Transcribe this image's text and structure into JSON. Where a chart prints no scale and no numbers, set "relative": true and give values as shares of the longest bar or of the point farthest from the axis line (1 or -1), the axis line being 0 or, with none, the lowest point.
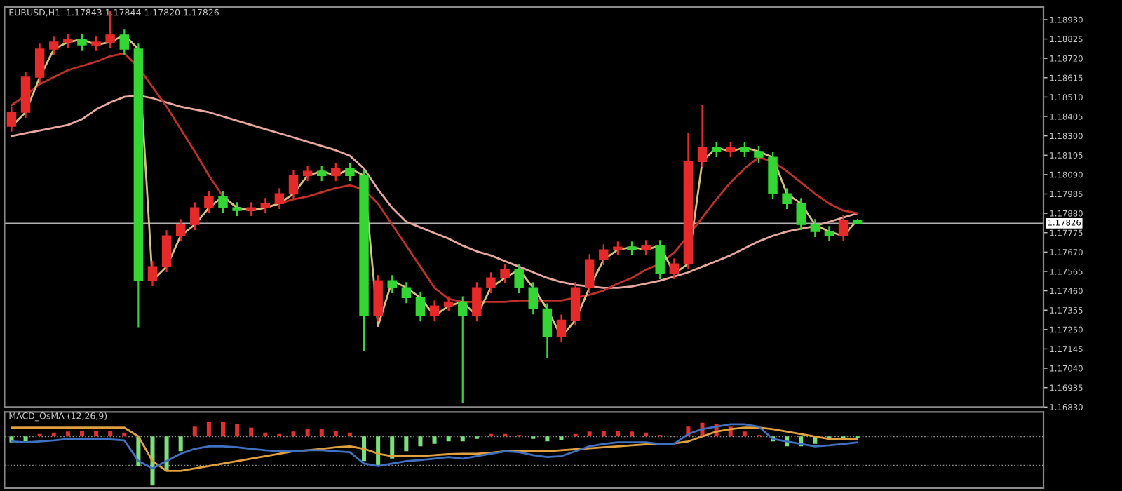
{
  "chart_data": [
    {
      "type": "candlestick",
      "title": "EURUSD,H1  1.17843 1.17844 1.17820 1.17826",
      "tick_labels": "y",
      "grid": false,
      "categories": [
        null,
        null,
        null,
        null,
        null,
        null,
        null,
        null,
        null,
        null,
        null,
        null,
        null,
        null,
        null,
        null,
        null,
        null,
        null,
        null,
        null,
        null,
        null,
        null,
        null,
        null,
        null,
        null,
        null,
        null,
        null,
        null,
        null,
        null,
        null,
        null,
        null,
        null,
        null,
        null,
        null,
        null,
        null,
        null,
        null,
        null,
        null,
        null,
        null,
        null,
        null,
        null,
        null,
        null,
        null,
        null,
        null,
        null,
        null,
        null,
        null
      ],
      "ohlc": [
        [
          1.18352,
          1.18458,
          1.18322,
          1.18428
        ],
        [
          1.18428,
          1.18648,
          1.18398,
          1.18618
        ],
        [
          1.18618,
          1.188,
          1.18588,
          1.1877
        ],
        [
          1.1877,
          1.18838,
          1.1874,
          1.18808
        ],
        [
          1.18808,
          1.18853,
          1.18778,
          1.18823
        ],
        [
          1.18823,
          1.18853,
          1.18763,
          1.18793
        ],
        [
          1.18793,
          1.18838,
          1.18763,
          1.18808
        ],
        [
          1.18808,
          1.18975,
          1.18778,
          1.18846
        ],
        [
          1.18846,
          1.18876,
          1.1874,
          1.1877
        ],
        [
          1.1877,
          1.188,
          1.17263,
          1.17515
        ],
        [
          1.17515,
          1.17621,
          1.17485,
          1.17591
        ],
        [
          1.17591,
          1.17788,
          1.17561,
          1.17758
        ],
        [
          1.17758,
          1.17849,
          1.17728,
          1.17819
        ],
        [
          1.17819,
          1.1794,
          1.17789,
          1.1791
        ],
        [
          1.1791,
          1.18001,
          1.1788,
          1.17971
        ],
        [
          1.17971,
          1.18001,
          1.1788,
          1.1791
        ],
        [
          1.1791,
          1.1794,
          1.17865,
          1.17895
        ],
        [
          1.17895,
          1.1794,
          1.17865,
          1.1791
        ],
        [
          1.1791,
          1.17963,
          1.1788,
          1.17933
        ],
        [
          1.17933,
          1.18016,
          1.17903,
          1.17986
        ],
        [
          1.17986,
          1.18115,
          1.17956,
          1.18085
        ],
        [
          1.18085,
          1.18138,
          1.18055,
          1.18108
        ],
        [
          1.18108,
          1.18138,
          1.18055,
          1.18085
        ],
        [
          1.18085,
          1.18153,
          1.18055,
          1.18123
        ],
        [
          1.18123,
          1.18153,
          1.18055,
          1.18085
        ],
        [
          1.18085,
          1.18115,
          1.17134,
          1.17324
        ],
        [
          1.17324,
          1.17545,
          1.17294,
          1.17515
        ],
        [
          1.17515,
          1.17545,
          1.17447,
          1.17477
        ],
        [
          1.17477,
          1.17507,
          1.17393,
          1.17423
        ],
        [
          1.17423,
          1.17453,
          1.17294,
          1.17324
        ],
        [
          1.17324,
          1.17408,
          1.17294,
          1.17378
        ],
        [
          1.17378,
          1.1743,
          1.17348,
          1.174
        ],
        [
          1.174,
          1.1743,
          1.16853,
          1.17324
        ],
        [
          1.17324,
          1.17507,
          1.17294,
          1.17477
        ],
        [
          1.17477,
          1.1756,
          1.17447,
          1.1753
        ],
        [
          1.1753,
          1.17605,
          1.175,
          1.17575
        ],
        [
          1.17575,
          1.17605,
          1.17447,
          1.17477
        ],
        [
          1.17477,
          1.17507,
          1.17332,
          1.17362
        ],
        [
          1.17362,
          1.17392,
          1.17096,
          1.1721
        ],
        [
          1.1721,
          1.17331,
          1.1718,
          1.17301
        ],
        [
          1.17301,
          1.17507,
          1.17271,
          1.17477
        ],
        [
          1.17477,
          1.17659,
          1.17447,
          1.17629
        ],
        [
          1.17629,
          1.17712,
          1.17599,
          1.17682
        ],
        [
          1.17682,
          1.17727,
          1.17652,
          1.17697
        ],
        [
          1.17697,
          1.17727,
          1.17652,
          1.17682
        ],
        [
          1.17682,
          1.17735,
          1.17652,
          1.17705
        ],
        [
          1.17705,
          1.17735,
          1.17523,
          1.17553
        ],
        [
          1.17553,
          1.17636,
          1.17523,
          1.17606
        ],
        [
          1.17606,
          1.18314,
          1.17576,
          1.18161
        ],
        [
          1.18161,
          1.18466,
          1.18131,
          1.18237
        ],
        [
          1.18237,
          1.18267,
          1.18185,
          1.18215
        ],
        [
          1.18215,
          1.18267,
          1.18185,
          1.18237
        ],
        [
          1.18237,
          1.18267,
          1.18185,
          1.18215
        ],
        [
          1.18215,
          1.18245,
          1.18154,
          1.18184
        ],
        [
          1.18184,
          1.18214,
          1.17956,
          1.17986
        ],
        [
          1.17986,
          1.18016,
          1.17903,
          1.17933
        ],
        [
          1.17933,
          1.17963,
          1.17789,
          1.17819
        ],
        [
          1.17819,
          1.17849,
          1.17751,
          1.17781
        ],
        [
          1.17781,
          1.17811,
          1.17728,
          1.17758
        ],
        [
          1.17758,
          1.17873,
          1.17728,
          1.17843
        ],
        [
          1.17843,
          1.17844,
          1.1782,
          1.17826
        ]
      ],
      "colors": [
        "#e62a2a",
        "#e62a2a",
        "#e62a2a",
        "#e62a2a",
        "#e62a2a",
        "#33d633",
        "#e62a2a",
        "#e62a2a",
        "#33d633",
        "#33d633",
        "#e62a2a",
        "#e62a2a",
        "#e62a2a",
        "#e62a2a",
        "#e62a2a",
        "#33d633",
        "#33d633",
        "#e62a2a",
        "#e62a2a",
        "#e62a2a",
        "#e62a2a",
        "#e62a2a",
        "#33d633",
        "#e62a2a",
        "#33d633",
        "#33d633",
        "#e62a2a",
        "#33d633",
        "#33d633",
        "#33d633",
        "#e62a2a",
        "#e62a2a",
        "#33d633",
        "#e62a2a",
        "#e62a2a",
        "#e62a2a",
        "#33d633",
        "#33d633",
        "#33d633",
        "#e62a2a",
        "#e62a2a",
        "#e62a2a",
        "#e62a2a",
        "#e62a2a",
        "#33d633",
        "#e62a2a",
        "#33d633",
        "#e62a2a",
        "#e62a2a",
        "#e62a2a",
        "#33d633",
        "#e62a2a",
        "#33d633",
        "#33d633",
        "#33d633",
        "#33d633",
        "#33d633",
        "#33d633",
        "#33d633",
        "#e62a2a",
        "#33d633"
      ],
      "series": [
        {
          "type": "line",
          "color": "#e8a8a0",
          "values": [
            1.18298,
            1.18314,
            1.18329,
            1.18344,
            1.18359,
            1.1839,
            1.18443,
            1.18481,
            1.18511,
            1.18519,
            1.18504,
            1.18481,
            1.18458,
            1.18443,
            1.18428,
            1.18405,
            1.18382,
            1.18359,
            1.18336,
            1.18314,
            1.18291,
            1.18268,
            1.18245,
            1.18222,
            1.18192,
            1.18123,
            1.18009,
            1.1791,
            1.17834,
            1.17804,
            1.17773,
            1.17743,
            1.17705,
            1.17674,
            1.17652,
            1.17621,
            1.17591,
            1.1756,
            1.1753,
            1.17507,
            1.17492,
            1.17484,
            1.17476,
            1.17476,
            1.17484,
            1.17499,
            1.17515,
            1.17537,
            1.1756,
            1.17591,
            1.17621,
            1.17652,
            1.1769,
            1.17728,
            1.17758,
            1.17781,
            1.17796,
            1.17811,
            1.17834,
            1.17857,
            1.1788
          ]
        },
        {
          "type": "line",
          "color": "#c0302a",
          "values": [
            1.18466,
            1.18519,
            1.1858,
            1.18618,
            1.18656,
            1.18679,
            1.18702,
            1.18732,
            1.18747,
            1.18671,
            1.18565,
            1.18458,
            1.18336,
            1.18215,
            1.18085,
            1.17971,
            1.1791,
            1.17895,
            1.1791,
            1.17933,
            1.17956,
            1.17971,
            1.17994,
            1.18017,
            1.18032,
            1.18009,
            1.17933,
            1.17819,
            1.17705,
            1.17591,
            1.17476,
            1.17416,
            1.174,
            1.174,
            1.174,
            1.174,
            1.17408,
            1.17408,
            1.17408,
            1.17408,
            1.17423,
            1.17438,
            1.17461,
            1.17499,
            1.1753,
            1.17575,
            1.17606,
            1.17667,
            1.17758,
            1.17857,
            1.17956,
            1.18047,
            1.18123,
            1.18184,
            1.18161,
            1.18108,
            1.18047,
            1.17986,
            1.17933,
            1.17895,
            1.1788
          ]
        },
        {
          "type": "line",
          "color": "#d8c080",
          "values": [
            1.18352,
            1.18428,
            1.18618,
            1.1877,
            1.18808,
            1.18823,
            1.18793,
            1.18808,
            1.18846,
            1.1877,
            1.17515,
            1.17591,
            1.17758,
            1.17819,
            1.1791,
            1.17971,
            1.1791,
            1.17895,
            1.1791,
            1.17933,
            1.17986,
            1.18085,
            1.18108,
            1.18085,
            1.18123,
            1.18085,
            1.1727,
            1.17515,
            1.17477,
            1.17423,
            1.17324,
            1.17378,
            1.174,
            1.17324,
            1.17477,
            1.1753,
            1.17575,
            1.17477,
            1.17362,
            1.1721,
            1.17301,
            1.17477,
            1.17629,
            1.17682,
            1.17697,
            1.17682,
            1.17705,
            1.17553,
            1.17606,
            1.18161,
            1.18237,
            1.18215,
            1.18237,
            1.18215,
            1.18184,
            1.17986,
            1.17933,
            1.17819,
            1.17781,
            1.17758,
            1.17843
          ]
        }
      ],
      "ylim": [
        1.1683,
        1.18999
      ],
      "yticks": [
        {
          "value": 1.1683,
          "label": "1.16830"
        },
        {
          "value": 1.16935,
          "label": "1.16935"
        },
        {
          "value": 1.1704,
          "label": "1.17040"
        },
        {
          "value": 1.17145,
          "label": "1.17145"
        },
        {
          "value": 1.1725,
          "label": "1.17250"
        },
        {
          "value": 1.17355,
          "label": "1.17355"
        },
        {
          "value": 1.1746,
          "label": "1.17460"
        },
        {
          "value": 1.17565,
          "label": "1.17565"
        },
        {
          "value": 1.1767,
          "label": "1.17670"
        },
        {
          "value": 1.17775,
          "label": "1.17775"
        },
        {
          "value": 1.1788,
          "label": "1.17880"
        },
        {
          "value": 1.17985,
          "label": "1.17985"
        },
        {
          "value": 1.1809,
          "label": "1.18090"
        },
        {
          "value": 1.18195,
          "label": "1.18195"
        },
        {
          "value": 1.183,
          "label": "1.18300"
        },
        {
          "value": 1.18405,
          "label": "1.18405"
        },
        {
          "value": 1.1851,
          "label": "1.18510"
        },
        {
          "value": 1.18615,
          "label": "1.18615"
        },
        {
          "value": 1.1872,
          "label": "1.18720"
        },
        {
          "value": 1.18825,
          "label": "1.18825"
        },
        {
          "value": 1.1893,
          "label": "1.18930"
        }
      ],
      "ref_lines": [
        {
          "axis": "y",
          "value": 1.17826,
          "label": "1.17826",
          "color": "#b0b0b0",
          "line_style": "solid"
        }
      ]
    },
    {
      "type": "bar",
      "title": "MACD_OsMA (12,26,9)",
      "relative": true,
      "tick_labels": false,
      "grid": false,
      "categories": [
        null,
        null,
        null,
        null,
        null,
        null,
        null,
        null,
        null,
        null,
        null,
        null,
        null,
        null,
        null,
        null,
        null,
        null,
        null,
        null,
        null,
        null,
        null,
        null,
        null,
        null,
        null,
        null,
        null,
        null,
        null,
        null,
        null,
        null,
        null,
        null,
        null,
        null,
        null,
        null,
        null,
        null,
        null,
        null,
        null,
        null,
        null,
        null,
        null,
        null,
        null,
        null,
        null,
        null,
        null,
        null,
        null,
        null,
        null,
        null,
        null
      ],
      "series": [
        {
          "type": "bar",
          "colors": [
            "#7be07b",
            "#7be07b",
            "#e03030",
            "#e03030",
            "#e03030",
            "#e03030",
            "#e03030",
            "#e03030",
            "#e03030",
            "#7be07b",
            "#7be07b",
            "#7be07b",
            "#7be07b",
            "#e03030",
            "#e03030",
            "#e03030",
            "#e03030",
            "#e03030",
            "#e03030",
            "#e03030",
            "#e03030",
            "#e03030",
            "#e03030",
            "#e03030",
            "#e03030",
            "#7be07b",
            "#7be07b",
            "#7be07b",
            "#7be07b",
            "#7be07b",
            "#7be07b",
            "#7be07b",
            "#7be07b",
            "#7be07b",
            "#e03030",
            "#e03030",
            "#e03030",
            "#7be07b",
            "#7be07b",
            "#7be07b",
            "#e03030",
            "#e03030",
            "#e03030",
            "#e03030",
            "#e03030",
            "#e03030",
            "#e03030",
            "#e03030",
            "#e03030",
            "#e03030",
            "#e03030",
            "#e03030",
            "#e03030",
            "#e03030",
            "#7be07b",
            "#7be07b",
            "#7be07b",
            "#7be07b",
            "#7be07b",
            "#7be07b",
            "#7be07b"
          ],
          "values": [
            -0.12,
            -0.1,
            0.05,
            0.08,
            0.1,
            0.12,
            0.12,
            0.12,
            0.08,
            -0.6,
            -1,
            -0.7,
            -0.3,
            0.2,
            0.3,
            0.3,
            0.25,
            0.18,
            0.08,
            0.05,
            0.1,
            0.15,
            0.15,
            0.12,
            0.08,
            -0.5,
            -0.6,
            -0.45,
            -0.3,
            -0.2,
            -0.15,
            -0.1,
            -0.1,
            -0.05,
            0.05,
            0.05,
            0.03,
            -0.05,
            -0.1,
            -0.08,
            0.05,
            0.1,
            0.12,
            0.12,
            0.1,
            0.08,
            0.03,
            0.02,
            0.2,
            0.28,
            0.25,
            0.2,
            0.1,
            0.03,
            -0.1,
            -0.2,
            -0.2,
            -0.15,
            -0.08,
            -0.05,
            -0.03
          ]
        },
        {
          "type": "line",
          "color": "#e0a040",
          "values": [
            0.18,
            0.18,
            0.18,
            0.18,
            0.18,
            0.18,
            0.18,
            0.18,
            0.18,
            0.0,
            -0.5,
            -0.7,
            -0.7,
            -0.65,
            -0.6,
            -0.55,
            -0.5,
            -0.45,
            -0.4,
            -0.35,
            -0.3,
            -0.28,
            -0.25,
            -0.22,
            -0.2,
            -0.25,
            -0.35,
            -0.4,
            -0.4,
            -0.4,
            -0.38,
            -0.36,
            -0.35,
            -0.35,
            -0.33,
            -0.3,
            -0.3,
            -0.3,
            -0.3,
            -0.28,
            -0.26,
            -0.24,
            -0.22,
            -0.2,
            -0.18,
            -0.16,
            -0.15,
            -0.14,
            -0.1,
            0.0,
            0.1,
            0.15,
            0.18,
            0.18,
            0.15,
            0.1,
            0.05,
            0.0,
            -0.05,
            -0.05,
            -0.05
          ]
        },
        {
          "type": "line",
          "color": "#4070c0",
          "values": [
            -0.1,
            -0.12,
            -0.1,
            -0.08,
            -0.05,
            -0.05,
            -0.05,
            -0.06,
            -0.08,
            -0.5,
            -0.65,
            -0.5,
            -0.35,
            -0.25,
            -0.2,
            -0.2,
            -0.22,
            -0.25,
            -0.28,
            -0.3,
            -0.3,
            -0.28,
            -0.28,
            -0.3,
            -0.32,
            -0.55,
            -0.6,
            -0.55,
            -0.5,
            -0.48,
            -0.45,
            -0.42,
            -0.45,
            -0.4,
            -0.35,
            -0.3,
            -0.32,
            -0.38,
            -0.42,
            -0.4,
            -0.3,
            -0.2,
            -0.15,
            -0.12,
            -0.12,
            -0.12,
            -0.15,
            -0.15,
            0.05,
            0.15,
            0.2,
            0.25,
            0.25,
            0.2,
            -0.05,
            -0.1,
            -0.15,
            -0.2,
            -0.18,
            -0.15,
            -0.12
          ]
        }
      ],
      "ref_lines": [
        {
          "axis": "y",
          "value": 0,
          "color": "#909090",
          "line_style": "dotted"
        },
        {
          "axis": "y",
          "value": -0.59,
          "color": "#909090",
          "line_style": "dotted"
        }
      ]
    }
  ]
}
